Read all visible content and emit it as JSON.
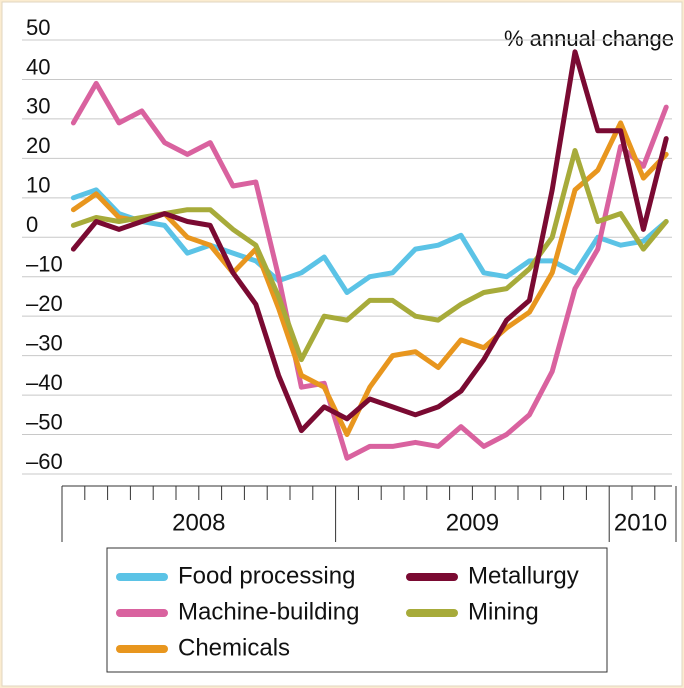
{
  "chart_data": {
    "type": "line",
    "unit_label": "% annual change",
    "categories": [
      null,
      null,
      null,
      null,
      null,
      null,
      null,
      null,
      null,
      null,
      null,
      null,
      null,
      null,
      null,
      null,
      null,
      null,
      null,
      null,
      null,
      null,
      null,
      null,
      null,
      null,
      null
    ],
    "years": [
      {
        "label": "2008",
        "months": 12
      },
      {
        "label": "2009",
        "months": 12
      },
      {
        "label": "2010",
        "months": 3
      }
    ],
    "ylim": [
      -60,
      50
    ],
    "yticks": [
      50,
      40,
      30,
      20,
      10,
      0,
      {
        "value": -10,
        "label": "–10"
      },
      {
        "value": -20,
        "label": "–20"
      },
      {
        "value": -30,
        "label": "–30"
      },
      {
        "value": -40,
        "label": "–40"
      },
      {
        "value": -50,
        "label": "–50"
      },
      {
        "value": -60,
        "label": "–60"
      }
    ],
    "grid": true,
    "series": [
      {
        "name": "Food processing",
        "color": "#5bc3e6",
        "values": [
          10,
          12,
          6,
          4,
          3,
          -4,
          -2,
          -4,
          -6,
          -11,
          -9,
          -5,
          -14,
          -10,
          -9,
          -3,
          -2,
          0.5,
          -9,
          -10,
          -6,
          -6,
          -9,
          0,
          -2,
          -1,
          4
        ]
      },
      {
        "name": "Machine-building",
        "color": "#d9629f",
        "values": [
          29,
          39,
          29,
          32,
          24,
          21,
          24,
          13,
          14,
          -10,
          -38,
          -37,
          -56,
          -53,
          -53,
          -52,
          -53,
          -48,
          -53,
          -50,
          -45,
          -34,
          -13,
          -3,
          23,
          18,
          33
        ]
      },
      {
        "name": "Chemicals",
        "color": "#e8961e",
        "values": [
          7,
          11,
          5,
          4,
          6,
          0,
          -2,
          -9,
          -3,
          -18,
          -35,
          -38,
          -50,
          -38,
          -30,
          -29,
          -33,
          -26,
          -28,
          -23,
          -19,
          -9,
          12,
          17,
          29,
          15,
          21
        ]
      },
      {
        "name": "Mining",
        "color": "#a7ab3a",
        "values": [
          3,
          5,
          4,
          5,
          6,
          7,
          7,
          2,
          -2,
          -15,
          -31,
          -20,
          -21,
          -16,
          -16,
          -20,
          -21,
          -17,
          -14,
          -13,
          -8,
          0,
          22,
          4,
          6,
          -3,
          4
        ]
      },
      {
        "name": "Metallurgy",
        "color": "#7a0a32",
        "values": [
          -3,
          4,
          2,
          4,
          6,
          4,
          3,
          -9,
          -17,
          -35,
          -49,
          -43,
          -46,
          -41,
          -43,
          -45,
          -43,
          -39,
          -31,
          -21,
          -16,
          12,
          47,
          27,
          27,
          2,
          25
        ]
      }
    ]
  }
}
